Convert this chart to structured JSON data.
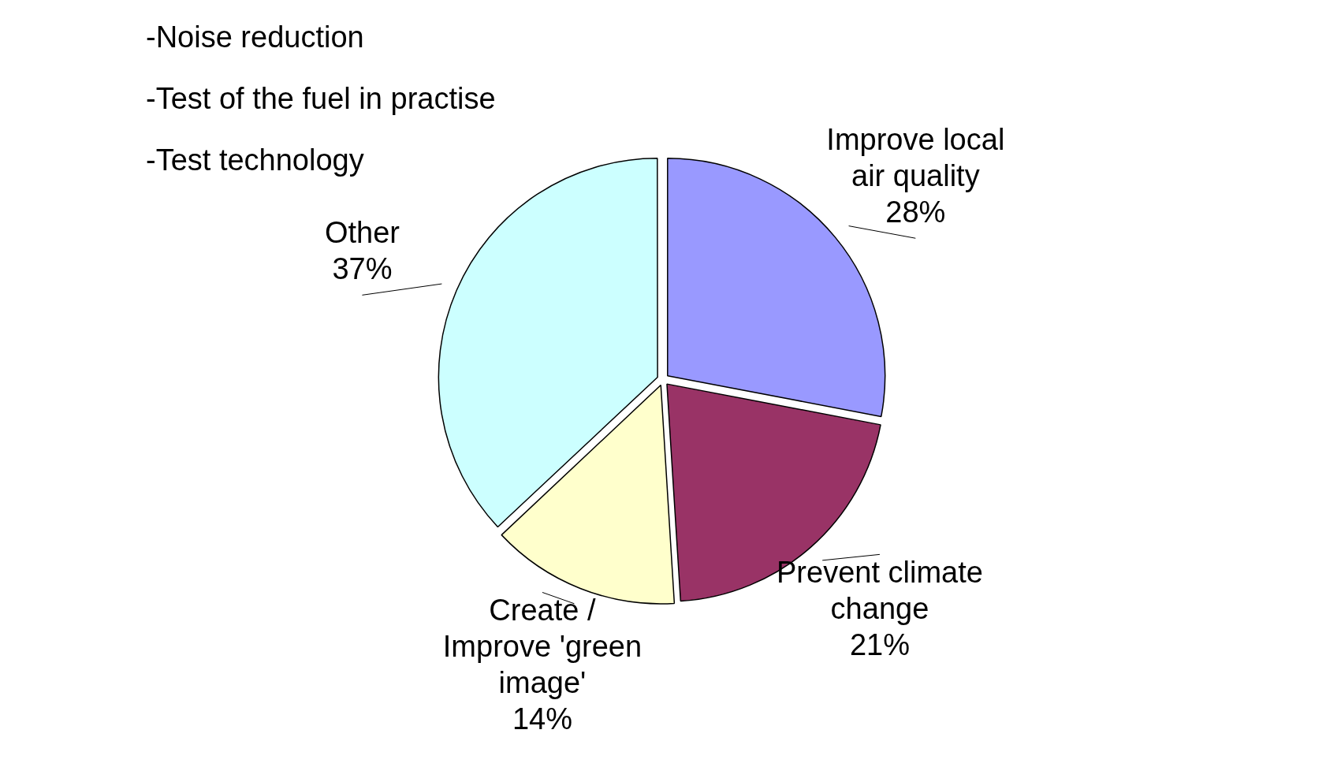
{
  "chart_data": {
    "type": "pie",
    "categories": [
      "Improve local air quality",
      "Prevent climate change",
      "Create / Improve 'green image'",
      "Other"
    ],
    "values": [
      28,
      21,
      14,
      37
    ],
    "colors": [
      "#9999ff",
      "#993366",
      "#ffffcc",
      "#ccffff"
    ],
    "value_labels": [
      "28%",
      "21%",
      "14%",
      "37%"
    ],
    "legend": false,
    "annotations": [
      "-Noise reduction",
      "-Test of the fuel in practise",
      "-Test technology"
    ]
  }
}
